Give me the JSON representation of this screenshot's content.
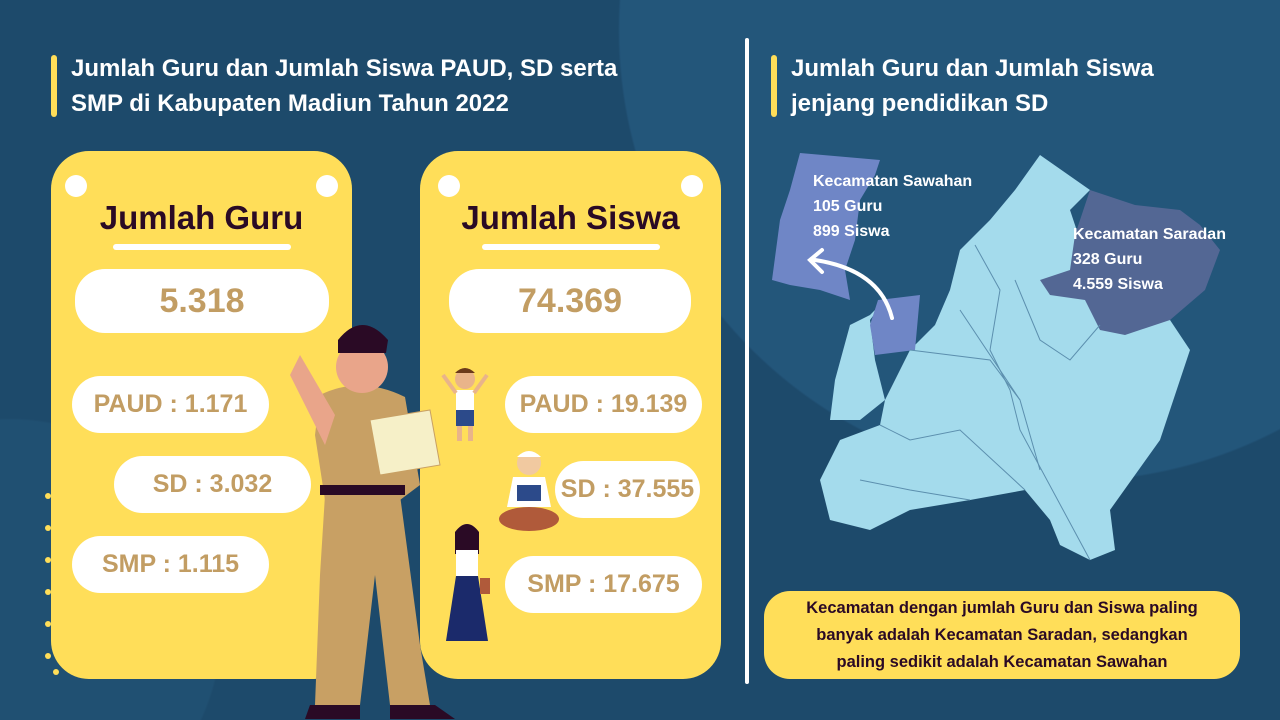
{
  "left": {
    "title_line1": "Jumlah Guru dan Jumlah Siswa PAUD, SD serta",
    "title_line2": "SMP di Kabupaten Madiun Tahun 2022",
    "guru": {
      "heading": "Jumlah Guru",
      "total": "5.318",
      "paud": "PAUD : 1.171",
      "sd": "SD : 3.032",
      "smp": "SMP : 1.115"
    },
    "siswa": {
      "heading": "Jumlah Siswa",
      "total": "74.369",
      "paud": "PAUD : 19.139",
      "sd": "SD : 37.555",
      "smp": "SMP : 17.675"
    }
  },
  "right": {
    "title_line1": "Jumlah Guru dan Jumlah Siswa",
    "title_line2": "jenjang pendidikan SD",
    "sawahan": {
      "name": "Kecamatan Sawahan",
      "guru": "105 Guru",
      "siswa": "899 Siswa"
    },
    "saradan": {
      "name": "Kecamatan Saradan",
      "guru": "328 Guru",
      "siswa": "4.559 Siswa"
    },
    "note_line1": "Kecamatan dengan jumlah Guru dan Siswa paling",
    "note_line2": "banyak adalah Kecamatan Saradan, sedangkan",
    "note_line3": "paling sedikit adalah Kecamatan Sawahan"
  },
  "colors": {
    "background": "#1d4a6b",
    "card": "#ffde59",
    "value_text": "#c29d63",
    "map_base": "#a4dbec",
    "saradan": "#536794",
    "sawahan": "#6f86c6"
  }
}
